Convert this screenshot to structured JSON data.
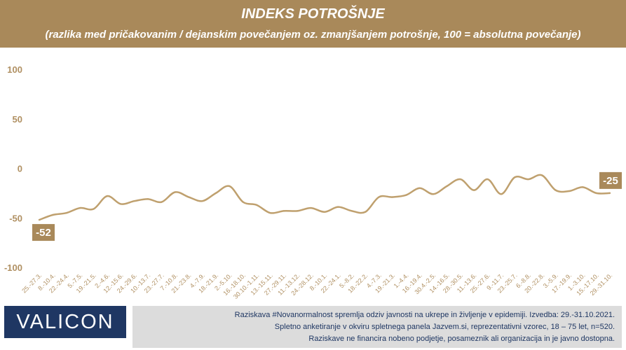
{
  "header": {
    "title": "INDEKS POTROŠNJE",
    "subtitle": "(razlika med pričakovanim / dejanskim povečanjem oz. zmanjšanjem potrošnje, 100 = absolutna povečanje)"
  },
  "colors": {
    "brand": "#a9895a",
    "line": "#bfa06e",
    "axis_text": "#b09062",
    "logo_bg": "#1f3763",
    "footer_bg": "#dcdcdc"
  },
  "chart_data": {
    "type": "line",
    "title": "INDEKS POTROŠNJE",
    "subtitle": "(razlika med pričakovanim / dejanskim povečanjem oz. zmanjšanjem potrošnje, 100 = absolutna povečanje)",
    "xlabel": "",
    "ylabel": "",
    "ylim": [
      -100,
      100
    ],
    "yticks": [
      100,
      50,
      0,
      -50,
      -100
    ],
    "grid": false,
    "legend": "none",
    "x": [
      "25.-27.3.",
      "8.-10.4.",
      "22.-24.4.",
      "5.-7.5.",
      "19.-21.5.",
      "2.-4.6.",
      "12.-15.6.",
      "24.-29.6.",
      "10.-13.7.",
      "23.-27.7.",
      "7.-10.8.",
      "21.-23.8.",
      "4.-7.9.",
      "18.-21.9.",
      "2.-5.10.",
      "16.-18.10.",
      "30.10.-1.11.",
      "13.-15.11.",
      "27.-29.11.",
      "11.-13.12.",
      "24.-28.12.",
      "8.-10.1.",
      "22.-24.1.",
      "5.-8.2.",
      "18.-22.2.",
      "4.-7.3.",
      "19.-21.3.",
      "1.-4.4.",
      "16.-19.4.",
      "30.4.-2.5.",
      "14.-16.5.",
      "28.-30.5.",
      "11.-13.6.",
      "25.-27.6.",
      "9.-11.7.",
      "23.-25.7.",
      "6.-8.8.",
      "20.-22.8.",
      "3.-5.9.",
      "17.-19.9.",
      "1.-3.10.",
      "15.-17.10.",
      "29.-31.10."
    ],
    "series": [
      {
        "values": [
          -52,
          -47,
          -45,
          -40,
          -41,
          -28,
          -36,
          -33,
          -31,
          -34,
          -24,
          -29,
          -33,
          -25,
          -18,
          -34,
          -37,
          -45,
          -43,
          -43,
          -40,
          -44,
          -39,
          -43,
          -44,
          -29,
          -29,
          -27,
          -20,
          -26,
          -18,
          -11,
          -22,
          -11,
          -26,
          -9,
          -11,
          -7,
          -22,
          -23,
          -19,
          -25,
          -25
        ]
      }
    ],
    "annotations": [
      {
        "label": "-52",
        "index": 0,
        "value": -52
      },
      {
        "label": "-25",
        "index": 42,
        "value": -25
      }
    ]
  },
  "footer": {
    "logo": "VALICON",
    "lines": [
      "Raziskava #Novanormalnost spremlja odziv javnosti na ukrepe in življenje v epidemiji. Izvedba: 29.-31.10.2021.",
      "Spletno anketiranje v okviru spletnega panela Jazvem.si, reprezentativni vzorec, 18 – 75 let, n=520.",
      "Raziskave ne financira nobeno podjetje, posameznik ali organizacija in je javno dostopna."
    ]
  }
}
